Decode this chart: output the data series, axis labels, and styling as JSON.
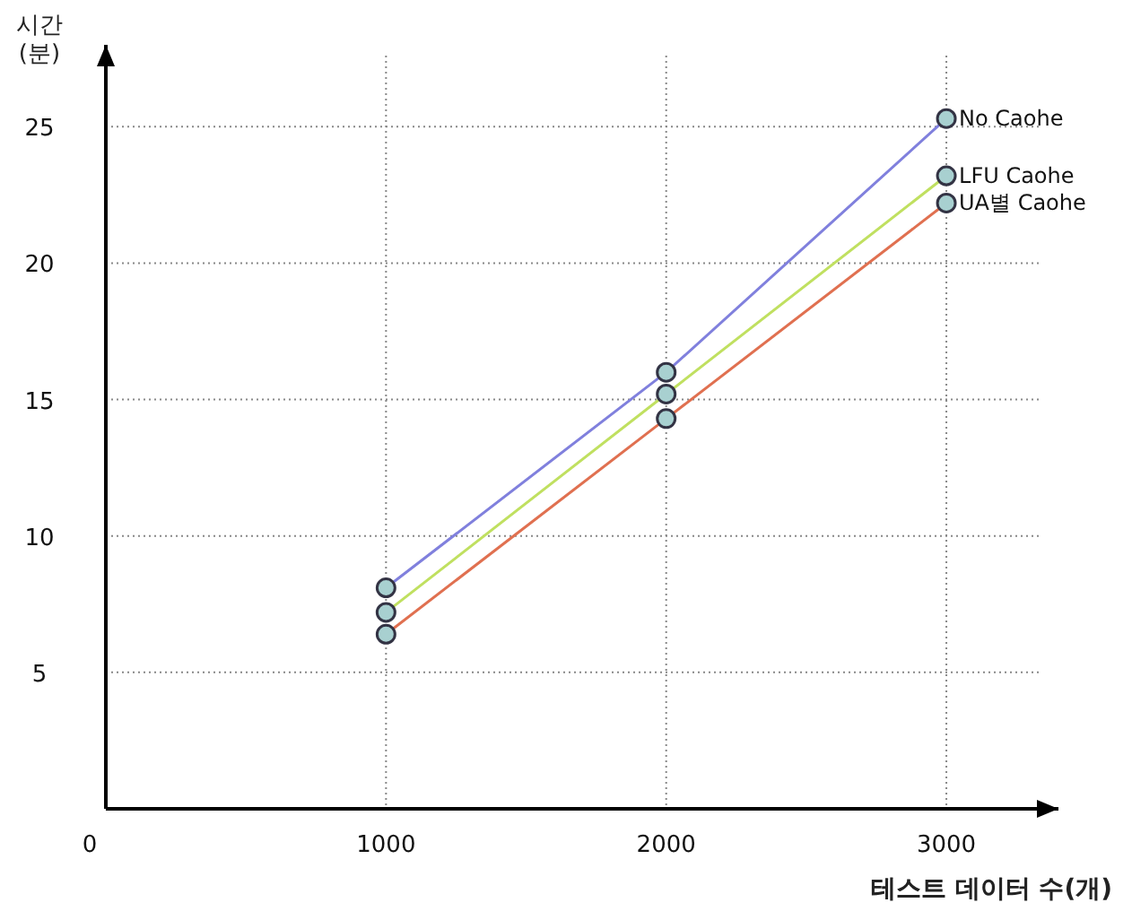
{
  "chart_data": {
    "type": "line",
    "xlabel": "테스트 데이터 수(개)",
    "ylabel": "시간\n(분)",
    "x": [
      1000,
      2000,
      3000
    ],
    "series": [
      {
        "name": "No Caohe",
        "color": "#8080dd",
        "values": [
          8.1,
          16.0,
          25.3
        ]
      },
      {
        "name": "LFU Caohe",
        "color": "#c0e060",
        "values": [
          7.2,
          15.2,
          23.2
        ]
      },
      {
        "name": "UA별 Caohe",
        "color": "#e07050",
        "values": [
          6.4,
          14.3,
          22.2
        ]
      }
    ],
    "xlim": [
      0,
      3400
    ],
    "ylim": [
      0,
      28
    ],
    "xticks": [
      0,
      1000,
      2000,
      3000
    ],
    "yticks": [
      5,
      10,
      15,
      20,
      25
    ],
    "grid": true,
    "marker": "circle",
    "line_style": "solid"
  }
}
